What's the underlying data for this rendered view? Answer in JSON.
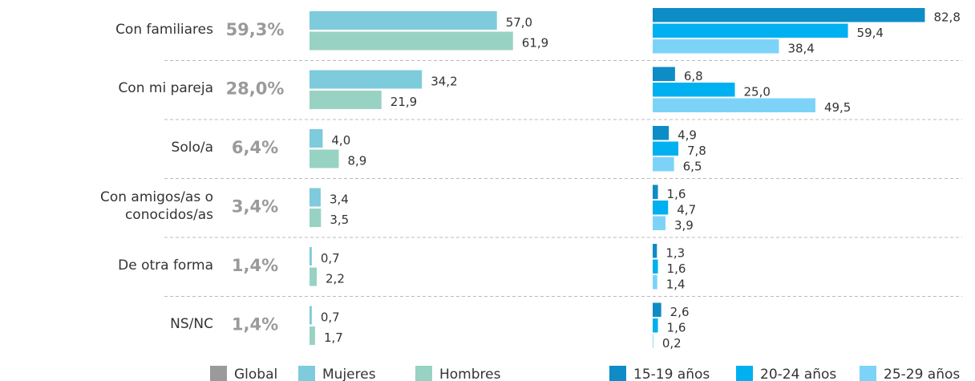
{
  "chart_data": [
    {
      "type": "bar",
      "categories": [
        "Con familiares",
        "Con mi pareja",
        "Solo/a",
        "Con amigos/as o conocidos/as",
        "De otra forma",
        "NS/NC"
      ],
      "series": [
        {
          "name": "Global",
          "color": "#9a9a9a",
          "values": [
            59.3,
            28.0,
            6.4,
            3.4,
            1.4,
            1.4
          ],
          "value_labels": [
            "59,3%",
            "28,0%",
            "6,4%",
            "3,4%",
            "1,4%",
            "1,4%"
          ]
        },
        {
          "name": "Mujeres",
          "color": "#7ecbdc",
          "values": [
            57.0,
            34.2,
            4.0,
            3.4,
            0.7,
            0.7
          ],
          "value_labels": [
            "57,0",
            "34,2",
            "4,0",
            "3,4",
            "0,7",
            "0,7"
          ]
        },
        {
          "name": "Hombres",
          "color": "#98d2c3",
          "values": [
            61.9,
            21.9,
            8.9,
            3.5,
            2.2,
            1.7
          ],
          "value_labels": [
            "61,9",
            "21,9",
            "8,9",
            "3,5",
            "2,2",
            "1,7"
          ]
        }
      ]
    },
    {
      "type": "bar",
      "series": [
        {
          "name": "15-19 años",
          "color": "#0e8cc6",
          "values": [
            82.8,
            6.8,
            4.9,
            1.6,
            1.3,
            2.6
          ],
          "value_labels": [
            "82,8",
            "6,8",
            "4,9",
            "1,6",
            "1,3",
            "2,6"
          ]
        },
        {
          "name": "20-24 años",
          "color": "#00b0f0",
          "values": [
            59.4,
            25.0,
            7.8,
            4.7,
            1.6,
            1.6
          ],
          "value_labels": [
            "59,4",
            "25,0",
            "7,8",
            "4,7",
            "1,6",
            "1,6"
          ]
        },
        {
          "name": "25-29 años",
          "color": "#7dd3f7",
          "values": [
            38.4,
            49.5,
            6.5,
            3.9,
            1.4,
            0.2
          ],
          "value_labels": [
            "38,4",
            "49,5",
            "6,5",
            "3,9",
            "1,4",
            "0,2"
          ]
        }
      ]
    }
  ]
}
